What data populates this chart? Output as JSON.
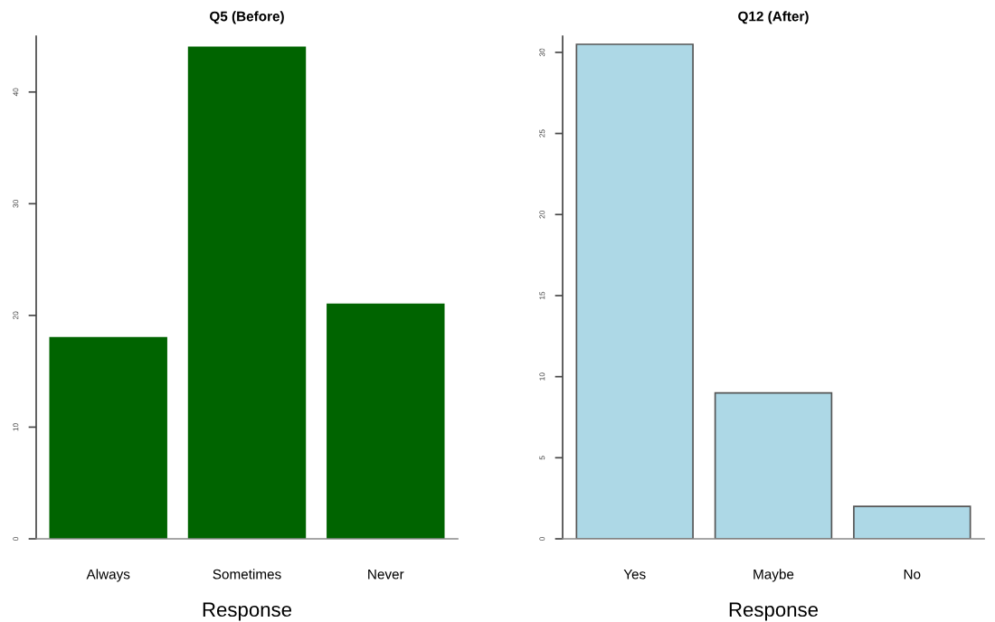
{
  "chart_data": [
    {
      "type": "bar",
      "title": "Q5 (Before)",
      "xlabel": "Response",
      "categories": [
        "Always",
        "Sometimes",
        "Never"
      ],
      "values": [
        18,
        44,
        21
      ],
      "color": "#006400",
      "ylim": [
        0,
        45
      ],
      "yticks": [
        0,
        10,
        20,
        30,
        40
      ],
      "grid": false,
      "legend": false
    },
    {
      "type": "bar",
      "title": "Q12 (After)",
      "xlabel": "Response",
      "categories": [
        "Yes",
        "Maybe",
        "No"
      ],
      "values": [
        30.5,
        9,
        2
      ],
      "color": "#add8e6",
      "ylim": [
        0,
        31
      ],
      "yticks": [
        0,
        5,
        10,
        15,
        20,
        25,
        30
      ],
      "grid": false,
      "legend": false
    }
  ]
}
